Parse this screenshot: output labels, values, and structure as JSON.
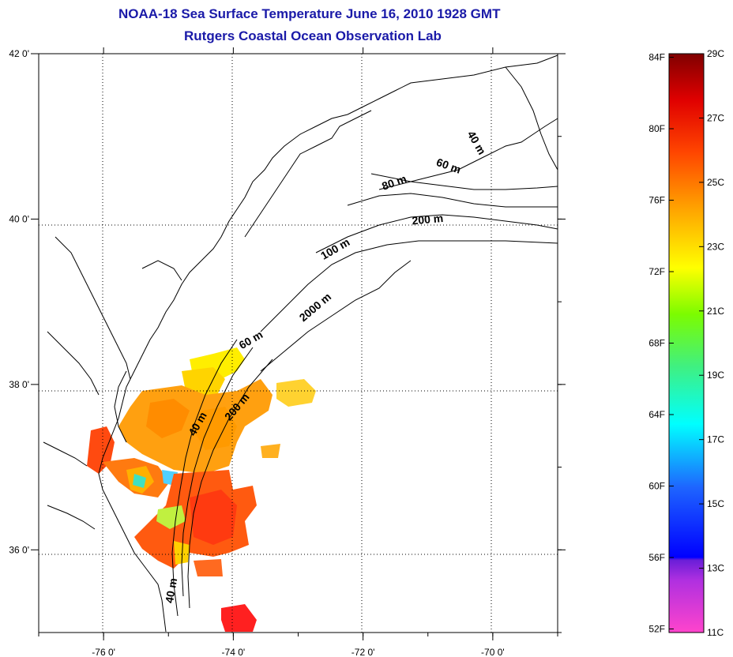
{
  "title_line1": "NOAA-18 Sea Surface Temperature June 16, 2010 1928 GMT",
  "title_line2": "Rutgers Coastal Ocean Observation Lab",
  "map": {
    "lon_range": [
      -77,
      -69
    ],
    "lat_range": [
      35,
      42
    ],
    "grid": "dotted",
    "lon_ticks": [
      {
        "value": -76,
        "label": "-76 0'"
      },
      {
        "value": -74,
        "label": "-74 0'"
      },
      {
        "value": -72,
        "label": "-72 0'"
      },
      {
        "value": -70,
        "label": "-70 0'"
      }
    ],
    "lat_ticks": [
      {
        "value": 42,
        "label": "42 0'"
      },
      {
        "value": 40,
        "label": "40 0'"
      },
      {
        "value": 38,
        "label": "38 0'"
      },
      {
        "value": 36,
        "label": "36 0'"
      }
    ],
    "contour_labels": [
      {
        "text": "40 m",
        "lon": -70.3,
        "lat": 40.9,
        "angle": 60
      },
      {
        "text": "60 m",
        "lon": -70.7,
        "lat": 40.6,
        "angle": 20
      },
      {
        "text": "80 m",
        "lon": -71.5,
        "lat": 40.4,
        "angle": -20
      },
      {
        "text": "200 m",
        "lon": -71.0,
        "lat": 39.95,
        "angle": -5
      },
      {
        "text": "100 m",
        "lon": -72.4,
        "lat": 39.6,
        "angle": -30
      },
      {
        "text": "2000 m",
        "lon": -72.7,
        "lat": 38.9,
        "angle": -40
      },
      {
        "text": "60 m",
        "lon": -73.7,
        "lat": 38.5,
        "angle": -30
      },
      {
        "text": "200 m",
        "lon": -73.9,
        "lat": 37.7,
        "angle": -50
      },
      {
        "text": "40 m",
        "lon": -74.5,
        "lat": 37.5,
        "angle": -60
      },
      {
        "text": "40 m",
        "lon": -74.9,
        "lat": 35.5,
        "angle": -80
      }
    ]
  },
  "colorbar": {
    "f_labels": [
      {
        "value": 84,
        "label": "84F"
      },
      {
        "value": 80,
        "label": "80F"
      },
      {
        "value": 76,
        "label": "76F"
      },
      {
        "value": 72,
        "label": "72F"
      },
      {
        "value": 68,
        "label": "68F"
      },
      {
        "value": 64,
        "label": "64F"
      },
      {
        "value": 60,
        "label": "60F"
      },
      {
        "value": 56,
        "label": "56F"
      },
      {
        "value": 52,
        "label": "52F"
      }
    ],
    "c_labels": [
      {
        "value": 29,
        "label": "29C"
      },
      {
        "value": 27,
        "label": "27C"
      },
      {
        "value": 25,
        "label": "25C"
      },
      {
        "value": 23,
        "label": "23C"
      },
      {
        "value": 21,
        "label": "21C"
      },
      {
        "value": 19,
        "label": "19C"
      },
      {
        "value": 17,
        "label": "17C"
      },
      {
        "value": 15,
        "label": "15C"
      },
      {
        "value": 13,
        "label": "13C"
      },
      {
        "value": 11,
        "label": "11C"
      }
    ],
    "c_range": [
      11,
      29
    ],
    "colors": [
      "#ff44cc",
      "#8a2be2",
      "#0000ff",
      "#1e90ff",
      "#00ffff",
      "#7cfc00",
      "#ffff00",
      "#ffa500",
      "#ff4500",
      "#ff0000",
      "#800000"
    ]
  }
}
